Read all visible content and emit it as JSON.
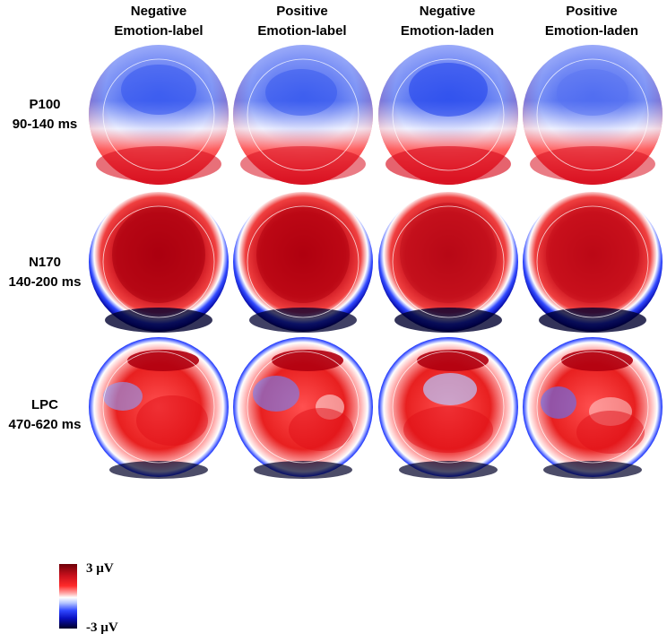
{
  "columns": [
    {
      "line1": "Negative",
      "line2": "Emotion-label"
    },
    {
      "line1": "Positive",
      "line2": "Emotion-label"
    },
    {
      "line1": "Negative",
      "line2": "Emotion-laden"
    },
    {
      "line1": "Positive",
      "line2": "Emotion-laden"
    }
  ],
  "rows": [
    {
      "name": "P100",
      "window": "90-140 ms"
    },
    {
      "name": "N170",
      "window": "140-200 ms"
    },
    {
      "name": "LPC",
      "window": "470-620 ms"
    }
  ],
  "colorbar": {
    "max_label": "3 µV",
    "min_label": "-3 µV",
    "colors": [
      "#6e0008",
      "#ff2a2a",
      "#ffffff",
      "#3048ff",
      "#000028"
    ]
  }
}
